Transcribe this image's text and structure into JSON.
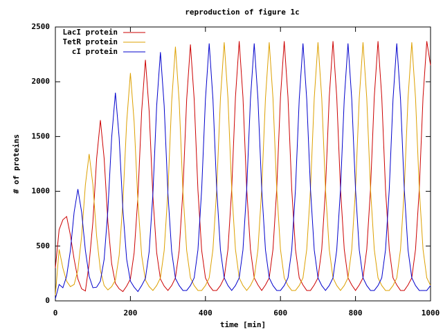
{
  "chart_data": {
    "type": "line",
    "title": "reproduction of figure 1c",
    "x_label": "time [min]",
    "y_label": "# of proteins",
    "xlim": [
      0,
      1000
    ],
    "ylim": [
      0,
      2500
    ],
    "xticks": [
      0,
      200,
      400,
      600,
      800,
      1000
    ],
    "yticks": [
      0,
      500,
      1000,
      1500,
      2000,
      2500
    ],
    "grid": false,
    "legend_position": "top-left",
    "x": [
      0,
      10,
      20,
      30,
      40,
      50,
      60,
      70,
      80,
      90,
      100,
      110,
      120,
      130,
      140,
      150,
      160,
      170,
      180,
      190,
      200,
      210,
      220,
      230,
      240,
      250,
      260,
      270,
      280,
      290,
      300,
      310,
      320,
      330,
      340,
      350,
      360,
      370,
      380,
      390,
      400,
      410,
      420,
      430,
      440,
      450,
      460,
      470,
      480,
      490,
      500,
      510,
      520,
      530,
      540,
      550,
      560,
      570,
      580,
      590,
      600,
      610,
      620,
      630,
      640,
      650,
      660,
      670,
      680,
      690,
      700,
      710,
      720,
      730,
      740,
      750,
      760,
      770,
      780,
      790,
      800,
      810,
      820,
      830,
      840,
      850,
      860,
      870,
      880,
      890,
      900,
      910,
      920,
      930,
      940,
      950,
      960,
      970,
      980,
      990,
      1000
    ],
    "series": [
      {
        "name": "LacI protein",
        "color": "#cc0000",
        "values": [
          300,
          650,
          740,
          770,
          600,
          380,
          200,
          110,
          90,
          340,
          720,
          1300,
          1650,
          1300,
          720,
          340,
          160,
          110,
          85,
          135,
          200,
          440,
          950,
          1730,
          2200,
          1730,
          950,
          440,
          200,
          135,
          95,
          140,
          210,
          460,
          1010,
          1840,
          2340,
          1840,
          1010,
          460,
          210,
          140,
          95,
          95,
          140,
          210,
          470,
          1020,
          1860,
          2370,
          1860,
          1020,
          470,
          210,
          145,
          95,
          145,
          210,
          470,
          1020,
          1860,
          2370,
          1860,
          1020,
          470,
          210,
          145,
          95,
          95,
          145,
          210,
          470,
          1020,
          1860,
          2370,
          1860,
          1020,
          470,
          210,
          145,
          95,
          145,
          210,
          470,
          1020,
          1860,
          2370,
          1860,
          1020,
          470,
          210,
          145,
          95,
          95,
          145,
          210,
          470,
          1020,
          1860,
          2370,
          2150
        ]
      },
      {
        "name": "TetR protein",
        "color": "#dda000",
        "values": [
          50,
          470,
          300,
          180,
          130,
          150,
          280,
          590,
          1060,
          1340,
          1060,
          590,
          280,
          140,
          100,
          130,
          190,
          415,
          900,
          1630,
          2080,
          1630,
          900,
          415,
          190,
          130,
          95,
          140,
          210,
          460,
          1000,
          1820,
          2320,
          1820,
          1000,
          460,
          210,
          140,
          95,
          95,
          140,
          210,
          470,
          1020,
          1850,
          2360,
          1850,
          1020,
          470,
          210,
          140,
          95,
          140,
          210,
          470,
          1020,
          1850,
          2360,
          1850,
          1020,
          470,
          210,
          140,
          95,
          95,
          140,
          210,
          470,
          1020,
          1850,
          2360,
          1850,
          1020,
          470,
          210,
          140,
          95,
          140,
          210,
          470,
          1020,
          1850,
          2360,
          1850,
          1020,
          470,
          210,
          140,
          95,
          95,
          140,
          210,
          470,
          1020,
          1850,
          2360,
          1850,
          1020,
          470,
          210,
          140
        ]
      },
      {
        "name": "cI protein",
        "color": "#0000cc",
        "values": [
          20,
          150,
          120,
          225,
          460,
          810,
          1020,
          810,
          460,
          225,
          120,
          125,
          180,
          380,
          830,
          1490,
          1900,
          1490,
          830,
          380,
          180,
          125,
          85,
          140,
          205,
          450,
          980,
          1780,
          2270,
          1780,
          980,
          450,
          205,
          140,
          95,
          95,
          140,
          210,
          465,
          1020,
          1840,
          2350,
          1840,
          1020,
          465,
          210,
          140,
          95,
          140,
          210,
          465,
          1020,
          1840,
          2350,
          1840,
          1020,
          465,
          210,
          140,
          95,
          95,
          140,
          210,
          465,
          1020,
          1840,
          2350,
          1840,
          1020,
          465,
          210,
          140,
          95,
          140,
          210,
          465,
          1020,
          1840,
          2350,
          1840,
          1020,
          465,
          210,
          140,
          95,
          95,
          140,
          210,
          465,
          1020,
          1840,
          2350,
          1840,
          1020,
          465,
          210,
          140,
          95,
          95,
          95,
          140
        ]
      }
    ]
  }
}
